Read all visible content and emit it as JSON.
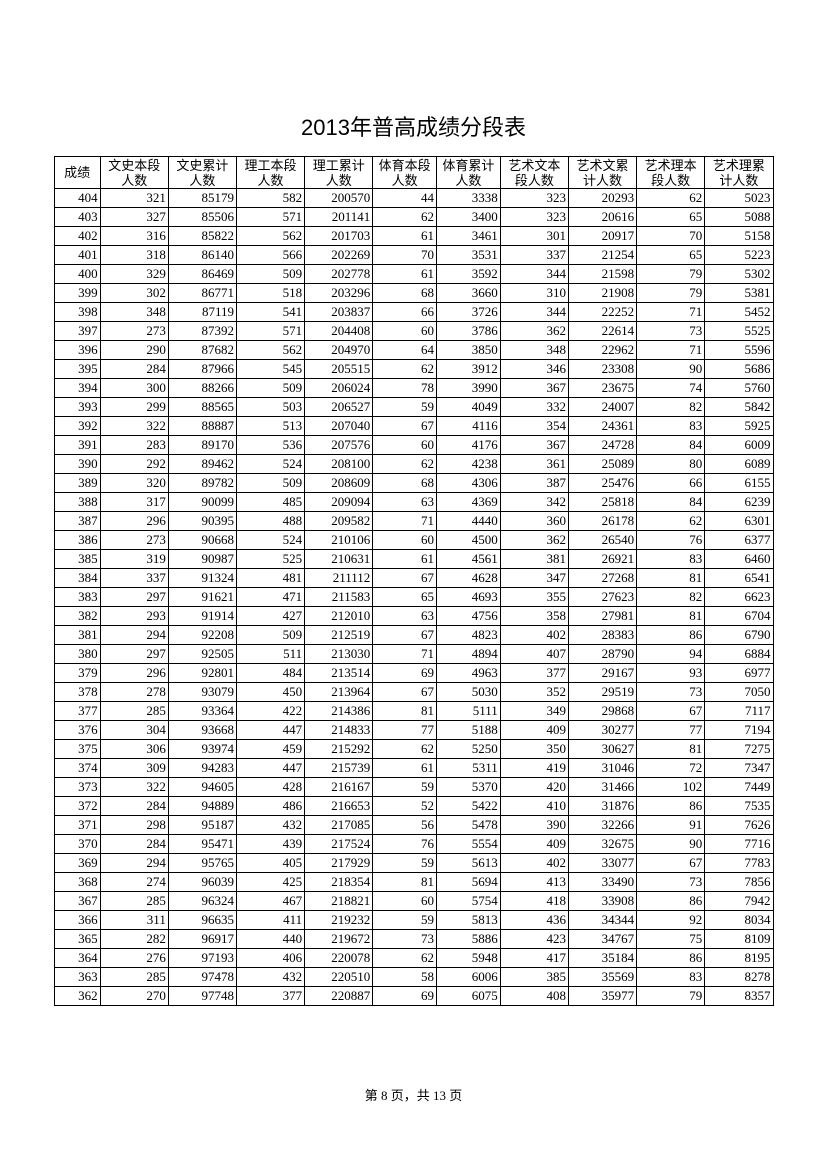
{
  "title": "2013年普高成绩分段表",
  "footer": "第 8 页，共 13 页",
  "columns": [
    {
      "label": "成绩",
      "class": "col-score"
    },
    {
      "label": "文史本段人数",
      "class": "col-c1"
    },
    {
      "label": "文史累计人数",
      "class": "col-c2"
    },
    {
      "label": "理工本段人数",
      "class": "col-c3"
    },
    {
      "label": "理工累计人数",
      "class": "col-c4"
    },
    {
      "label": "体育本段人数",
      "class": "col-c5"
    },
    {
      "label": "体育累计人数",
      "class": "col-c6"
    },
    {
      "label": "艺术文本段人数",
      "class": "col-c7"
    },
    {
      "label": "艺术文累计人数",
      "class": "col-c8"
    },
    {
      "label": "艺术理本段人数",
      "class": "col-c9"
    },
    {
      "label": "艺术理累计人数",
      "class": "col-c10"
    }
  ],
  "rows": [
    [
      404,
      321,
      85179,
      582,
      200570,
      44,
      3338,
      323,
      20293,
      62,
      5023
    ],
    [
      403,
      327,
      85506,
      571,
      201141,
      62,
      3400,
      323,
      20616,
      65,
      5088
    ],
    [
      402,
      316,
      85822,
      562,
      201703,
      61,
      3461,
      301,
      20917,
      70,
      5158
    ],
    [
      401,
      318,
      86140,
      566,
      202269,
      70,
      3531,
      337,
      21254,
      65,
      5223
    ],
    [
      400,
      329,
      86469,
      509,
      202778,
      61,
      3592,
      344,
      21598,
      79,
      5302
    ],
    [
      399,
      302,
      86771,
      518,
      203296,
      68,
      3660,
      310,
      21908,
      79,
      5381
    ],
    [
      398,
      348,
      87119,
      541,
      203837,
      66,
      3726,
      344,
      22252,
      71,
      5452
    ],
    [
      397,
      273,
      87392,
      571,
      204408,
      60,
      3786,
      362,
      22614,
      73,
      5525
    ],
    [
      396,
      290,
      87682,
      562,
      204970,
      64,
      3850,
      348,
      22962,
      71,
      5596
    ],
    [
      395,
      284,
      87966,
      545,
      205515,
      62,
      3912,
      346,
      23308,
      90,
      5686
    ],
    [
      394,
      300,
      88266,
      509,
      206024,
      78,
      3990,
      367,
      23675,
      74,
      5760
    ],
    [
      393,
      299,
      88565,
      503,
      206527,
      59,
      4049,
      332,
      24007,
      82,
      5842
    ],
    [
      392,
      322,
      88887,
      513,
      207040,
      67,
      4116,
      354,
      24361,
      83,
      5925
    ],
    [
      391,
      283,
      89170,
      536,
      207576,
      60,
      4176,
      367,
      24728,
      84,
      6009
    ],
    [
      390,
      292,
      89462,
      524,
      208100,
      62,
      4238,
      361,
      25089,
      80,
      6089
    ],
    [
      389,
      320,
      89782,
      509,
      208609,
      68,
      4306,
      387,
      25476,
      66,
      6155
    ],
    [
      388,
      317,
      90099,
      485,
      209094,
      63,
      4369,
      342,
      25818,
      84,
      6239
    ],
    [
      387,
      296,
      90395,
      488,
      209582,
      71,
      4440,
      360,
      26178,
      62,
      6301
    ],
    [
      386,
      273,
      90668,
      524,
      210106,
      60,
      4500,
      362,
      26540,
      76,
      6377
    ],
    [
      385,
      319,
      90987,
      525,
      210631,
      61,
      4561,
      381,
      26921,
      83,
      6460
    ],
    [
      384,
      337,
      91324,
      481,
      211112,
      67,
      4628,
      347,
      27268,
      81,
      6541
    ],
    [
      383,
      297,
      91621,
      471,
      211583,
      65,
      4693,
      355,
      27623,
      82,
      6623
    ],
    [
      382,
      293,
      91914,
      427,
      212010,
      63,
      4756,
      358,
      27981,
      81,
      6704
    ],
    [
      381,
      294,
      92208,
      509,
      212519,
      67,
      4823,
      402,
      28383,
      86,
      6790
    ],
    [
      380,
      297,
      92505,
      511,
      213030,
      71,
      4894,
      407,
      28790,
      94,
      6884
    ],
    [
      379,
      296,
      92801,
      484,
      213514,
      69,
      4963,
      377,
      29167,
      93,
      6977
    ],
    [
      378,
      278,
      93079,
      450,
      213964,
      67,
      5030,
      352,
      29519,
      73,
      7050
    ],
    [
      377,
      285,
      93364,
      422,
      214386,
      81,
      5111,
      349,
      29868,
      67,
      7117
    ],
    [
      376,
      304,
      93668,
      447,
      214833,
      77,
      5188,
      409,
      30277,
      77,
      7194
    ],
    [
      375,
      306,
      93974,
      459,
      215292,
      62,
      5250,
      350,
      30627,
      81,
      7275
    ],
    [
      374,
      309,
      94283,
      447,
      215739,
      61,
      5311,
      419,
      31046,
      72,
      7347
    ],
    [
      373,
      322,
      94605,
      428,
      216167,
      59,
      5370,
      420,
      31466,
      102,
      7449
    ],
    [
      372,
      284,
      94889,
      486,
      216653,
      52,
      5422,
      410,
      31876,
      86,
      7535
    ],
    [
      371,
      298,
      95187,
      432,
      217085,
      56,
      5478,
      390,
      32266,
      91,
      7626
    ],
    [
      370,
      284,
      95471,
      439,
      217524,
      76,
      5554,
      409,
      32675,
      90,
      7716
    ],
    [
      369,
      294,
      95765,
      405,
      217929,
      59,
      5613,
      402,
      33077,
      67,
      7783
    ],
    [
      368,
      274,
      96039,
      425,
      218354,
      81,
      5694,
      413,
      33490,
      73,
      7856
    ],
    [
      367,
      285,
      96324,
      467,
      218821,
      60,
      5754,
      418,
      33908,
      86,
      7942
    ],
    [
      366,
      311,
      96635,
      411,
      219232,
      59,
      5813,
      436,
      34344,
      92,
      8034
    ],
    [
      365,
      282,
      96917,
      440,
      219672,
      73,
      5886,
      423,
      34767,
      75,
      8109
    ],
    [
      364,
      276,
      97193,
      406,
      220078,
      62,
      5948,
      417,
      35184,
      86,
      8195
    ],
    [
      363,
      285,
      97478,
      432,
      220510,
      58,
      6006,
      385,
      35569,
      83,
      8278
    ],
    [
      362,
      270,
      97748,
      377,
      220887,
      69,
      6075,
      408,
      35977,
      79,
      8357
    ]
  ],
  "style": {
    "background_color": "#ffffff",
    "border_color": "#000000",
    "text_color": "#000000",
    "title_fontsize": 22,
    "cell_fontsize": 13,
    "footer_fontsize": 13
  }
}
